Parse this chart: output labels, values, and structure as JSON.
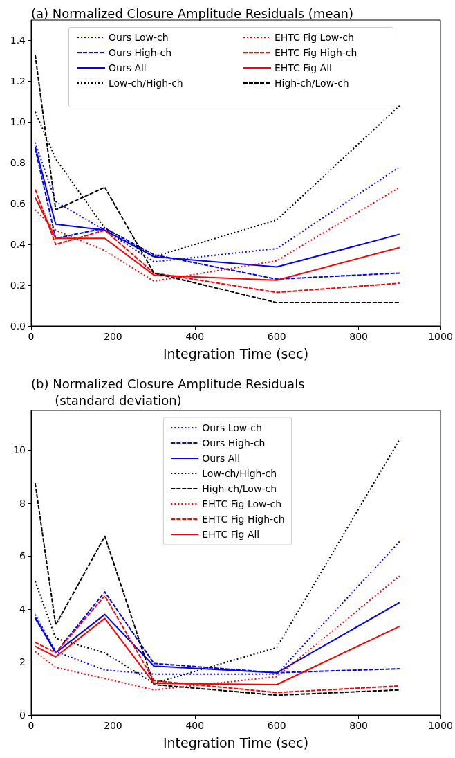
{
  "chart_data": [
    {
      "type": "line",
      "title": "(a) Normalized Closure Amplitude Residuals (mean)",
      "xlabel": "Integration Time (sec)",
      "x": [
        10,
        60,
        180,
        300,
        600,
        900
      ],
      "xlim": [
        0,
        1000
      ],
      "xticks": [
        0,
        200,
        400,
        600,
        800,
        1000
      ],
      "ylim": [
        0,
        1.5
      ],
      "yticks": [
        {
          "value": 0,
          "label": "0.0"
        },
        {
          "value": 0.2,
          "label": "0.2"
        },
        {
          "value": 0.4,
          "label": "0.4"
        },
        {
          "value": 0.6,
          "label": "0.6"
        },
        {
          "value": 0.8,
          "label": "0.8"
        },
        {
          "value": 1.0,
          "label": "1.0"
        },
        {
          "value": 1.2,
          "label": "1.2"
        },
        {
          "value": 1.4,
          "label": "1.4"
        }
      ],
      "grid": false,
      "legend": "top",
      "marker": "none",
      "series": [
        {
          "name": "Ours Low-ch",
          "color": "#0000ff",
          "line_style": "dotted",
          "values": [
            0.9,
            0.61,
            0.47,
            0.315,
            0.38,
            0.78
          ]
        },
        {
          "name": "Ours High-ch",
          "color": "#0000ff",
          "line_style": "dashed",
          "values": [
            0.87,
            0.43,
            0.48,
            0.35,
            0.23,
            0.26
          ]
        },
        {
          "name": "Ours All",
          "color": "#0000ff",
          "line_style": "solid",
          "values": [
            0.88,
            0.5,
            0.47,
            0.34,
            0.29,
            0.45
          ]
        },
        {
          "name": "Low-ch/High-ch",
          "color": "#000000",
          "line_style": "dotted",
          "values": [
            1.05,
            0.82,
            0.48,
            0.34,
            0.52,
            1.08
          ]
        },
        {
          "name": "EHTC Fig Low-ch",
          "color": "#ff0000",
          "line_style": "dotted",
          "values": [
            0.57,
            0.47,
            0.37,
            0.22,
            0.32,
            0.68
          ]
        },
        {
          "name": "EHTC Fig High-ch",
          "color": "#ff0000",
          "line_style": "dashed",
          "values": [
            0.67,
            0.4,
            0.47,
            0.26,
            0.165,
            0.21
          ]
        },
        {
          "name": "EHTC Fig All",
          "color": "#ff0000",
          "line_style": "solid",
          "values": [
            0.63,
            0.43,
            0.43,
            0.25,
            0.225,
            0.385
          ]
        },
        {
          "name": "High-ch/Low-ch",
          "color": "#000000",
          "line_style": "dashed",
          "values": [
            1.33,
            0.57,
            0.68,
            0.26,
            0.115,
            0.115
          ]
        }
      ]
    },
    {
      "type": "line",
      "title": "(b) Normalized Closure Amplitude Residuals\n      (standard deviation)",
      "xlabel": "Integration Time (sec)",
      "x": [
        10,
        60,
        180,
        300,
        600,
        900
      ],
      "xlim": [
        0,
        1000
      ],
      "xticks": [
        0,
        200,
        400,
        600,
        800,
        1000
      ],
      "ylim": [
        0,
        11.5
      ],
      "yticks": [
        0,
        2,
        4,
        6,
        8,
        10
      ],
      "grid": false,
      "legend": "top",
      "marker": "none",
      "series": [
        {
          "name": "Ours Low-ch",
          "color": "#0000ff",
          "line_style": "dotted",
          "values": [
            3.8,
            2.4,
            1.7,
            1.55,
            1.55,
            6.55
          ]
        },
        {
          "name": "Ours High-ch",
          "color": "#0000ff",
          "line_style": "dashed",
          "values": [
            3.65,
            2.35,
            4.65,
            1.95,
            1.6,
            1.75
          ]
        },
        {
          "name": "Ours All",
          "color": "#0000ff",
          "line_style": "solid",
          "values": [
            3.7,
            2.35,
            3.8,
            1.85,
            1.6,
            4.25
          ]
        },
        {
          "name": "Low-ch/High-ch",
          "color": "#000000",
          "line_style": "dotted",
          "values": [
            5.05,
            2.9,
            2.35,
            1.2,
            2.55,
            10.4
          ]
        },
        {
          "name": "High-ch/Low-ch",
          "color": "#000000",
          "line_style": "dashed",
          "values": [
            8.75,
            3.4,
            6.75,
            1.15,
            0.75,
            0.95
          ]
        },
        {
          "name": "EHTC Fig Low-ch",
          "color": "#ff0000",
          "line_style": "dotted",
          "values": [
            2.4,
            1.8,
            1.38,
            0.95,
            1.45,
            5.25
          ]
        },
        {
          "name": "EHTC Fig High-ch",
          "color": "#ff0000",
          "line_style": "dashed",
          "values": [
            2.75,
            2.35,
            4.5,
            1.3,
            0.85,
            1.1
          ]
        },
        {
          "name": "EHTC Fig All",
          "color": "#ff0000",
          "line_style": "solid",
          "values": [
            2.6,
            2.2,
            3.65,
            1.2,
            1.15,
            3.35
          ]
        }
      ]
    }
  ]
}
